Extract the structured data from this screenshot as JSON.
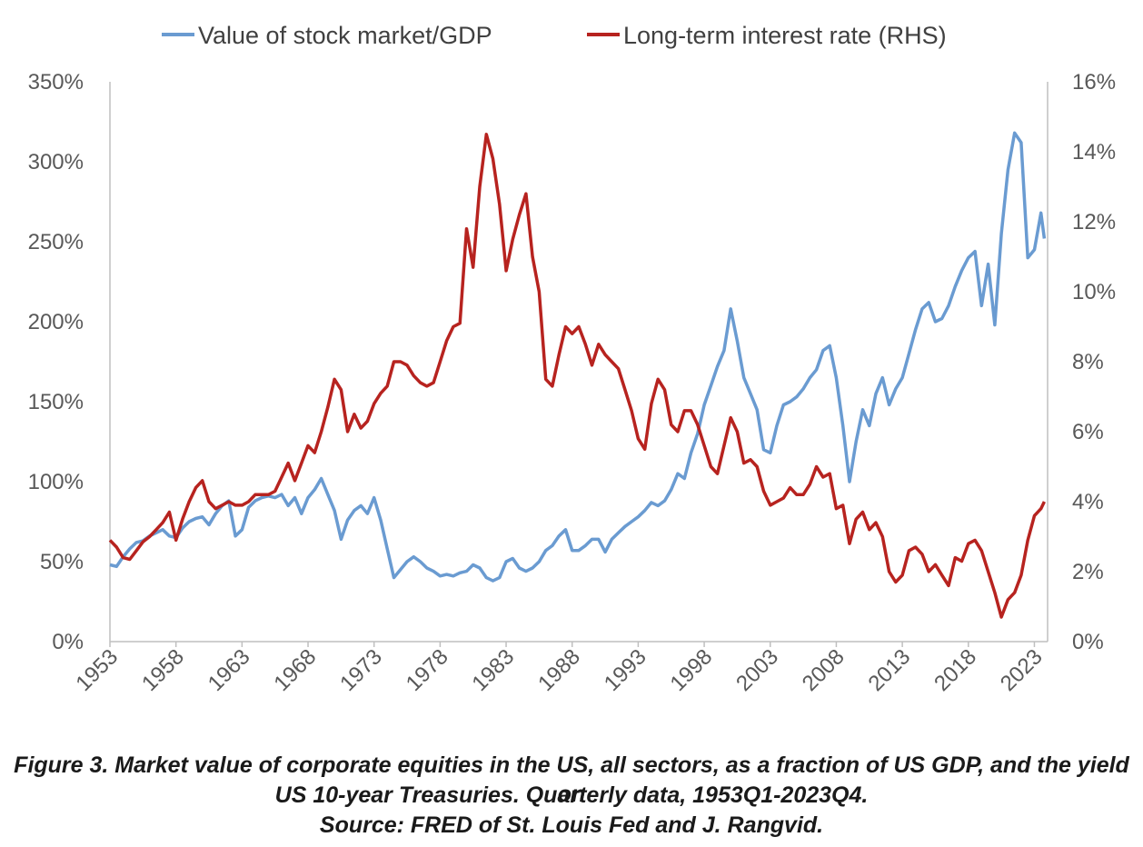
{
  "caption": {
    "line1": "Figure 3. Market value of corporate equities in the US, all sectors, as a fraction of US GDP, and the yield on",
    "line2": "US 10-year Treasuries. Quarterly data, 1953Q1-2023Q4.",
    "line3": "Source: FRED of St. Louis Fed and J. Rangvid."
  },
  "chart_data": {
    "type": "line",
    "legend_position": "top",
    "grid": false,
    "x_ticks": [
      "1953",
      "1958",
      "1963",
      "1968",
      "1973",
      "1978",
      "1983",
      "1988",
      "1993",
      "1998",
      "2003",
      "2008",
      "2013",
      "2018",
      "2023"
    ],
    "x_range": [
      1953,
      2024
    ],
    "y_left": {
      "range": [
        0,
        350
      ],
      "ticks": [
        "0%",
        "50%",
        "100%",
        "150%",
        "200%",
        "250%",
        "300%",
        "350%"
      ]
    },
    "y_right": {
      "range": [
        0,
        16
      ],
      "ticks": [
        "0%",
        "2%",
        "4%",
        "6%",
        "8%",
        "10%",
        "12%",
        "14%",
        "16%"
      ]
    },
    "series": [
      {
        "name": "Value of stock market/GDP",
        "axis": "left",
        "color": "#6a9bd1",
        "points": [
          [
            1953.0,
            48
          ],
          [
            1953.5,
            47
          ],
          [
            1954.0,
            53
          ],
          [
            1954.5,
            58
          ],
          [
            1955.0,
            62
          ],
          [
            1955.5,
            63
          ],
          [
            1956.0,
            66
          ],
          [
            1956.5,
            68
          ],
          [
            1957.0,
            70
          ],
          [
            1957.5,
            66
          ],
          [
            1958.0,
            65
          ],
          [
            1958.5,
            71
          ],
          [
            1959.0,
            75
          ],
          [
            1959.5,
            77
          ],
          [
            1960.0,
            78
          ],
          [
            1960.5,
            73
          ],
          [
            1961.0,
            80
          ],
          [
            1961.5,
            85
          ],
          [
            1962.0,
            88
          ],
          [
            1962.5,
            66
          ],
          [
            1963.0,
            70
          ],
          [
            1963.5,
            84
          ],
          [
            1964.0,
            88
          ],
          [
            1964.5,
            90
          ],
          [
            1965.0,
            91
          ],
          [
            1965.5,
            90
          ],
          [
            1966.0,
            92
          ],
          [
            1966.5,
            85
          ],
          [
            1967.0,
            90
          ],
          [
            1967.5,
            80
          ],
          [
            1968.0,
            90
          ],
          [
            1968.5,
            95
          ],
          [
            1969.0,
            102
          ],
          [
            1969.5,
            92
          ],
          [
            1970.0,
            82
          ],
          [
            1970.5,
            64
          ],
          [
            1971.0,
            76
          ],
          [
            1971.5,
            82
          ],
          [
            1972.0,
            85
          ],
          [
            1972.5,
            80
          ],
          [
            1973.0,
            90
          ],
          [
            1973.5,
            76
          ],
          [
            1974.0,
            58
          ],
          [
            1974.5,
            40
          ],
          [
            1975.0,
            45
          ],
          [
            1975.5,
            50
          ],
          [
            1976.0,
            53
          ],
          [
            1976.5,
            50
          ],
          [
            1977.0,
            46
          ],
          [
            1977.5,
            44
          ],
          [
            1978.0,
            41
          ],
          [
            1978.5,
            42
          ],
          [
            1979.0,
            41
          ],
          [
            1979.5,
            43
          ],
          [
            1980.0,
            44
          ],
          [
            1980.5,
            48
          ],
          [
            1981.0,
            46
          ],
          [
            1981.5,
            40
          ],
          [
            1982.0,
            38
          ],
          [
            1982.5,
            40
          ],
          [
            1983.0,
            50
          ],
          [
            1983.5,
            52
          ],
          [
            1984.0,
            46
          ],
          [
            1984.5,
            44
          ],
          [
            1985.0,
            46
          ],
          [
            1985.5,
            50
          ],
          [
            1986.0,
            57
          ],
          [
            1986.5,
            60
          ],
          [
            1987.0,
            66
          ],
          [
            1987.5,
            70
          ],
          [
            1988.0,
            57
          ],
          [
            1988.5,
            57
          ],
          [
            1989.0,
            60
          ],
          [
            1989.5,
            64
          ],
          [
            1990.0,
            64
          ],
          [
            1990.5,
            56
          ],
          [
            1991.0,
            64
          ],
          [
            1991.5,
            68
          ],
          [
            1992.0,
            72
          ],
          [
            1992.5,
            75
          ],
          [
            1993.0,
            78
          ],
          [
            1993.5,
            82
          ],
          [
            1994.0,
            87
          ],
          [
            1994.5,
            85
          ],
          [
            1995.0,
            88
          ],
          [
            1995.5,
            95
          ],
          [
            1996.0,
            105
          ],
          [
            1996.5,
            102
          ],
          [
            1997.0,
            118
          ],
          [
            1997.5,
            130
          ],
          [
            1998.0,
            148
          ],
          [
            1998.5,
            160
          ],
          [
            1999.0,
            172
          ],
          [
            1999.5,
            182
          ],
          [
            2000.0,
            208
          ],
          [
            2000.5,
            188
          ],
          [
            2001.0,
            165
          ],
          [
            2001.5,
            155
          ],
          [
            2002.0,
            145
          ],
          [
            2002.5,
            120
          ],
          [
            2003.0,
            118
          ],
          [
            2003.5,
            135
          ],
          [
            2004.0,
            148
          ],
          [
            2004.5,
            150
          ],
          [
            2005.0,
            153
          ],
          [
            2005.5,
            158
          ],
          [
            2006.0,
            165
          ],
          [
            2006.5,
            170
          ],
          [
            2007.0,
            182
          ],
          [
            2007.5,
            185
          ],
          [
            2008.0,
            165
          ],
          [
            2008.5,
            135
          ],
          [
            2009.0,
            100
          ],
          [
            2009.5,
            125
          ],
          [
            2010.0,
            145
          ],
          [
            2010.5,
            135
          ],
          [
            2011.0,
            155
          ],
          [
            2011.5,
            165
          ],
          [
            2012.0,
            148
          ],
          [
            2012.5,
            158
          ],
          [
            2013.0,
            165
          ],
          [
            2013.5,
            180
          ],
          [
            2014.0,
            195
          ],
          [
            2014.5,
            208
          ],
          [
            2015.0,
            212
          ],
          [
            2015.5,
            200
          ],
          [
            2016.0,
            202
          ],
          [
            2016.5,
            210
          ],
          [
            2017.0,
            222
          ],
          [
            2017.5,
            232
          ],
          [
            2018.0,
            240
          ],
          [
            2018.5,
            244
          ],
          [
            2019.0,
            210
          ],
          [
            2019.5,
            236
          ],
          [
            2020.0,
            198
          ],
          [
            2020.5,
            255
          ],
          [
            2021.0,
            295
          ],
          [
            2021.5,
            318
          ],
          [
            2022.0,
            312
          ],
          [
            2022.5,
            240
          ],
          [
            2023.0,
            245
          ],
          [
            2023.5,
            268
          ],
          [
            2023.75,
            252
          ]
        ]
      },
      {
        "name": "Long-term interest rate (RHS)",
        "axis": "right",
        "color": "#b7231f",
        "points": [
          [
            1953.0,
            2.9
          ],
          [
            1953.5,
            2.7
          ],
          [
            1954.0,
            2.4
          ],
          [
            1954.5,
            2.35
          ],
          [
            1955.0,
            2.6
          ],
          [
            1955.5,
            2.85
          ],
          [
            1956.0,
            3.0
          ],
          [
            1956.5,
            3.2
          ],
          [
            1957.0,
            3.4
          ],
          [
            1957.5,
            3.7
          ],
          [
            1958.0,
            2.9
          ],
          [
            1958.5,
            3.5
          ],
          [
            1959.0,
            4.0
          ],
          [
            1959.5,
            4.4
          ],
          [
            1960.0,
            4.6
          ],
          [
            1960.5,
            4.0
          ],
          [
            1961.0,
            3.8
          ],
          [
            1961.5,
            3.9
          ],
          [
            1962.0,
            4.0
          ],
          [
            1962.5,
            3.9
          ],
          [
            1963.0,
            3.9
          ],
          [
            1963.5,
            4.0
          ],
          [
            1964.0,
            4.2
          ],
          [
            1964.5,
            4.2
          ],
          [
            1965.0,
            4.2
          ],
          [
            1965.5,
            4.3
          ],
          [
            1966.0,
            4.7
          ],
          [
            1966.5,
            5.1
          ],
          [
            1967.0,
            4.6
          ],
          [
            1967.5,
            5.1
          ],
          [
            1968.0,
            5.6
          ],
          [
            1968.5,
            5.4
          ],
          [
            1969.0,
            6.0
          ],
          [
            1969.5,
            6.7
          ],
          [
            1970.0,
            7.5
          ],
          [
            1970.5,
            7.2
          ],
          [
            1971.0,
            6.0
          ],
          [
            1971.5,
            6.5
          ],
          [
            1972.0,
            6.1
          ],
          [
            1972.5,
            6.3
          ],
          [
            1973.0,
            6.8
          ],
          [
            1973.5,
            7.1
          ],
          [
            1974.0,
            7.3
          ],
          [
            1974.5,
            8.0
          ],
          [
            1975.0,
            8.0
          ],
          [
            1975.5,
            7.9
          ],
          [
            1976.0,
            7.6
          ],
          [
            1976.5,
            7.4
          ],
          [
            1977.0,
            7.3
          ],
          [
            1977.5,
            7.4
          ],
          [
            1978.0,
            8.0
          ],
          [
            1978.5,
            8.6
          ],
          [
            1979.0,
            9.0
          ],
          [
            1979.5,
            9.1
          ],
          [
            1980.0,
            11.8
          ],
          [
            1980.5,
            10.7
          ],
          [
            1981.0,
            13.0
          ],
          [
            1981.5,
            14.5
          ],
          [
            1982.0,
            13.8
          ],
          [
            1982.5,
            12.5
          ],
          [
            1983.0,
            10.6
          ],
          [
            1983.5,
            11.5
          ],
          [
            1984.0,
            12.2
          ],
          [
            1984.5,
            12.8
          ],
          [
            1985.0,
            11.0
          ],
          [
            1985.5,
            10.0
          ],
          [
            1986.0,
            7.5
          ],
          [
            1986.5,
            7.3
          ],
          [
            1987.0,
            8.2
          ],
          [
            1987.5,
            9.0
          ],
          [
            1988.0,
            8.8
          ],
          [
            1988.5,
            9.0
          ],
          [
            1989.0,
            8.5
          ],
          [
            1989.5,
            7.9
          ],
          [
            1990.0,
            8.5
          ],
          [
            1990.5,
            8.2
          ],
          [
            1991.0,
            8.0
          ],
          [
            1991.5,
            7.8
          ],
          [
            1992.0,
            7.2
          ],
          [
            1992.5,
            6.6
          ],
          [
            1993.0,
            5.8
          ],
          [
            1993.5,
            5.5
          ],
          [
            1994.0,
            6.8
          ],
          [
            1994.5,
            7.5
          ],
          [
            1995.0,
            7.2
          ],
          [
            1995.5,
            6.2
          ],
          [
            1996.0,
            6.0
          ],
          [
            1996.5,
            6.6
          ],
          [
            1997.0,
            6.6
          ],
          [
            1997.5,
            6.2
          ],
          [
            1998.0,
            5.6
          ],
          [
            1998.5,
            5.0
          ],
          [
            1999.0,
            4.8
          ],
          [
            1999.5,
            5.6
          ],
          [
            2000.0,
            6.4
          ],
          [
            2000.5,
            6.0
          ],
          [
            2001.0,
            5.1
          ],
          [
            2001.5,
            5.2
          ],
          [
            2002.0,
            5.0
          ],
          [
            2002.5,
            4.3
          ],
          [
            2003.0,
            3.9
          ],
          [
            2003.5,
            4.0
          ],
          [
            2004.0,
            4.1
          ],
          [
            2004.5,
            4.4
          ],
          [
            2005.0,
            4.2
          ],
          [
            2005.5,
            4.2
          ],
          [
            2006.0,
            4.5
          ],
          [
            2006.5,
            5.0
          ],
          [
            2007.0,
            4.7
          ],
          [
            2007.5,
            4.8
          ],
          [
            2008.0,
            3.8
          ],
          [
            2008.5,
            3.9
          ],
          [
            2009.0,
            2.8
          ],
          [
            2009.5,
            3.5
          ],
          [
            2010.0,
            3.7
          ],
          [
            2010.5,
            3.2
          ],
          [
            2011.0,
            3.4
          ],
          [
            2011.5,
            3.0
          ],
          [
            2012.0,
            2.0
          ],
          [
            2012.5,
            1.7
          ],
          [
            2013.0,
            1.9
          ],
          [
            2013.5,
            2.6
          ],
          [
            2014.0,
            2.7
          ],
          [
            2014.5,
            2.5
          ],
          [
            2015.0,
            2.0
          ],
          [
            2015.5,
            2.2
          ],
          [
            2016.0,
            1.9
          ],
          [
            2016.5,
            1.6
          ],
          [
            2017.0,
            2.4
          ],
          [
            2017.5,
            2.3
          ],
          [
            2018.0,
            2.8
          ],
          [
            2018.5,
            2.9
          ],
          [
            2019.0,
            2.6
          ],
          [
            2019.5,
            2.0
          ],
          [
            2020.0,
            1.4
          ],
          [
            2020.5,
            0.7
          ],
          [
            2021.0,
            1.2
          ],
          [
            2021.5,
            1.4
          ],
          [
            2022.0,
            1.9
          ],
          [
            2022.5,
            2.9
          ],
          [
            2023.0,
            3.6
          ],
          [
            2023.5,
            3.8
          ],
          [
            2023.75,
            4.0
          ]
        ]
      }
    ]
  }
}
